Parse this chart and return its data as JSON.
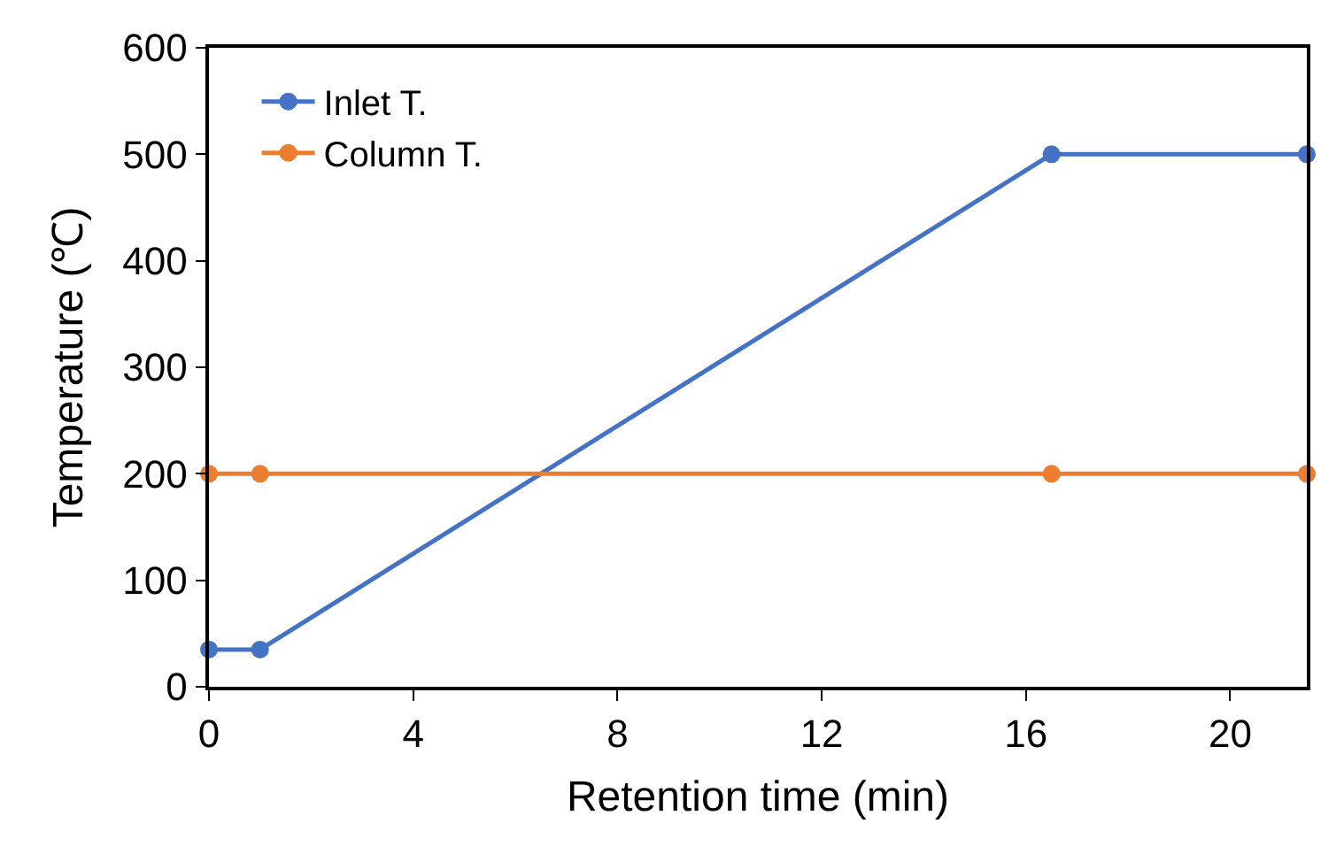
{
  "chart_data": {
    "type": "line",
    "xlabel": "Retention time (min)",
    "ylabel": "Temperature (℃)",
    "xlim": [
      0,
      21.5
    ],
    "xticks": [
      0,
      4,
      8,
      12,
      16,
      20
    ],
    "ylim": [
      0,
      600
    ],
    "yticks": [
      0,
      100,
      200,
      300,
      400,
      500,
      600
    ],
    "marker": "circle",
    "line_style": "solid",
    "legend": "top left",
    "series": [
      {
        "name": "Inlet T.",
        "color": "#4472c4",
        "x": [
          0,
          1,
          16.5,
          21.5
        ],
        "values": [
          35,
          35,
          500,
          500
        ]
      },
      {
        "name": "Column T.",
        "color": "#ed7d31",
        "x": [
          0,
          1,
          16.5,
          21.5
        ],
        "values": [
          200,
          200,
          200,
          200
        ]
      }
    ]
  }
}
